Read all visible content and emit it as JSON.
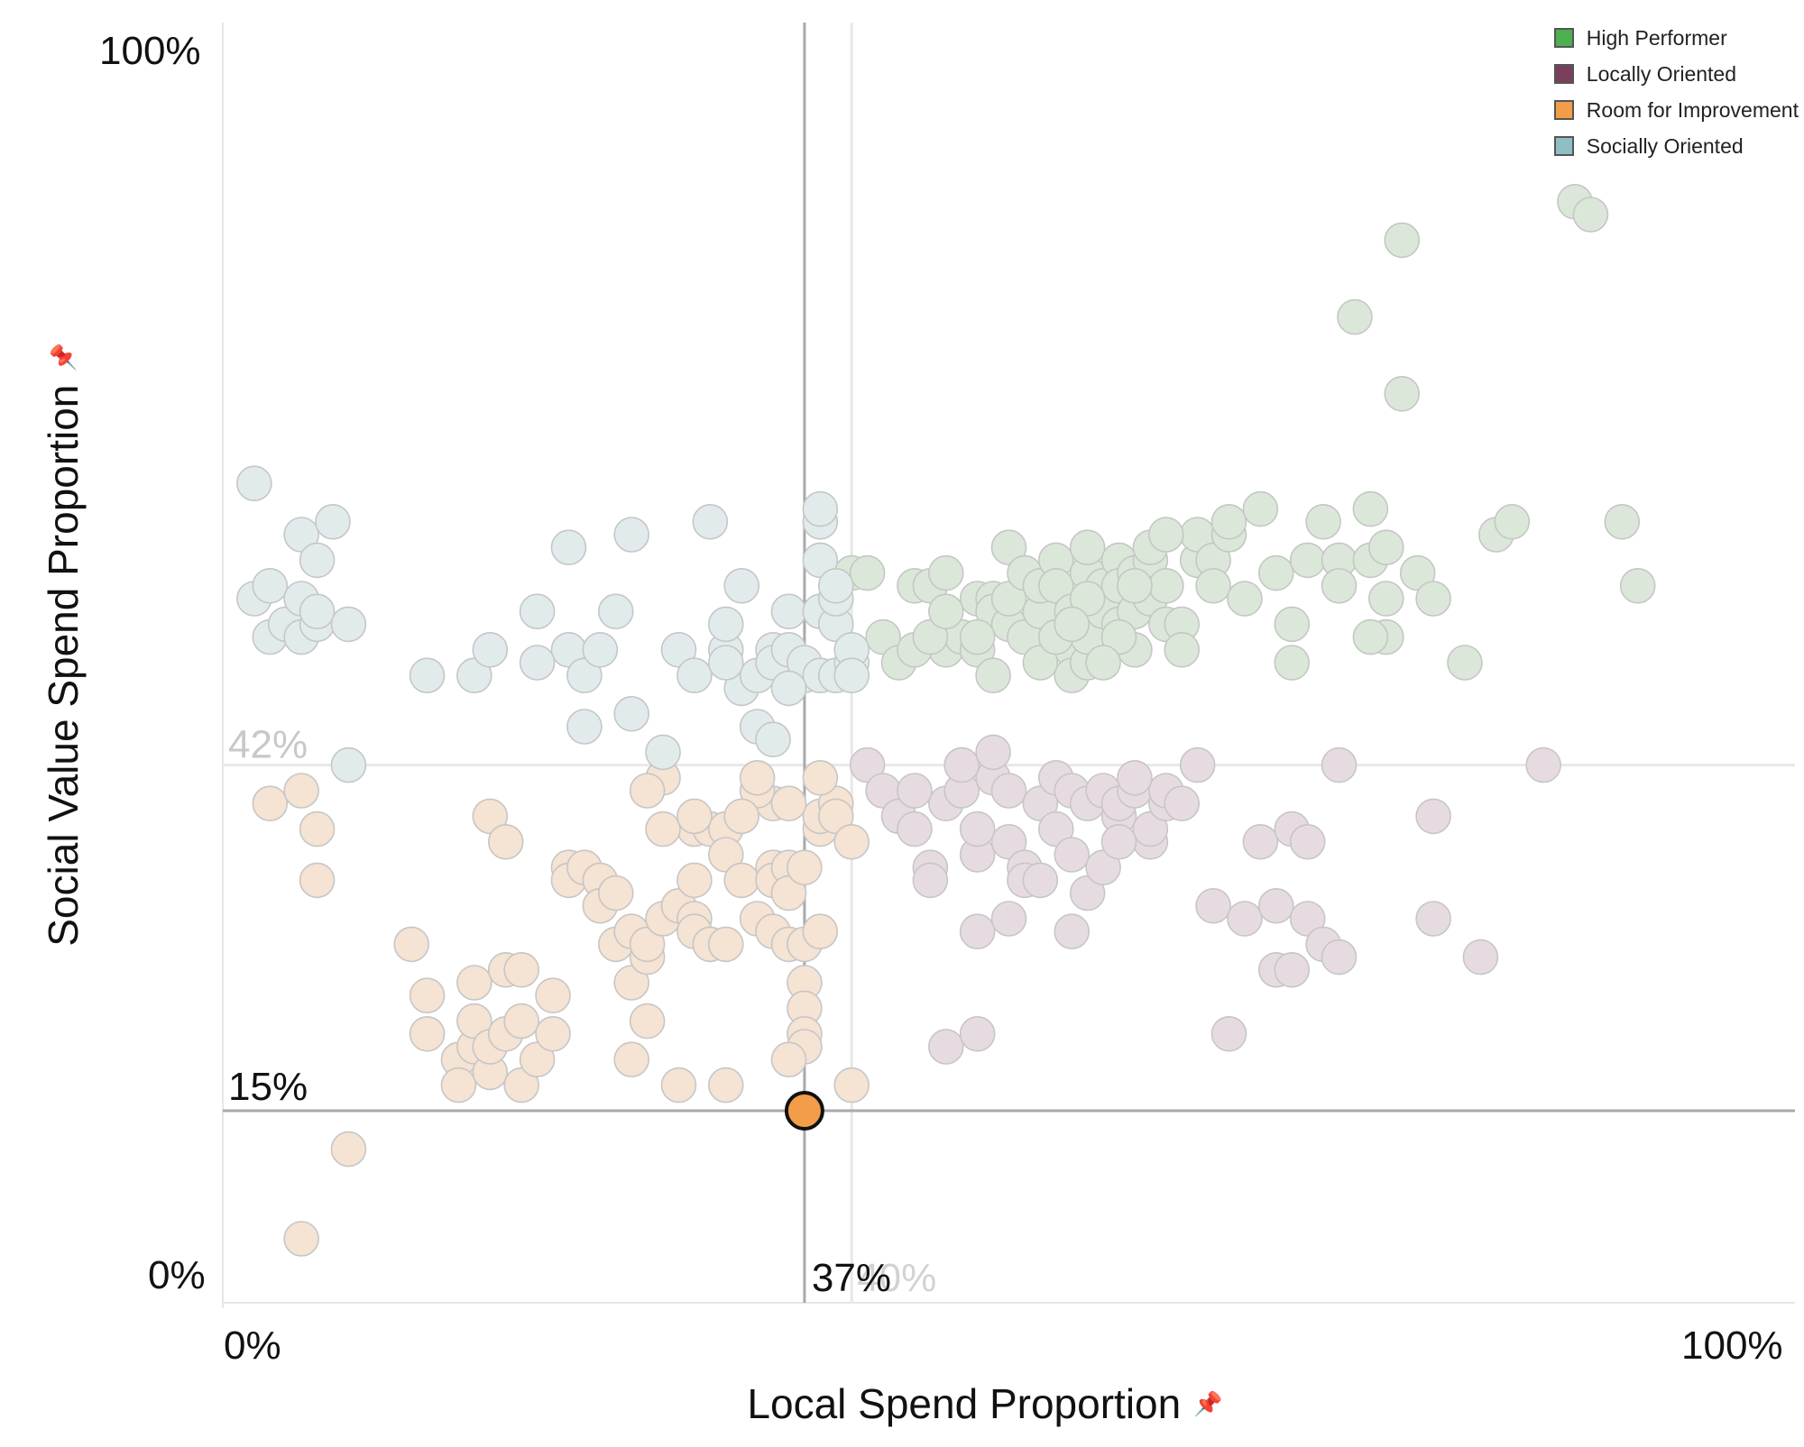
{
  "chart_data": {
    "type": "scatter",
    "xlabel": "Local Spend Proportion",
    "ylabel": "Social Value Spend Proportion",
    "xlim": [
      0,
      100
    ],
    "ylim": [
      0,
      100
    ],
    "x_ticks": [
      "0%",
      "100%"
    ],
    "y_ticks": [
      "0%",
      "100%"
    ],
    "grid": false,
    "legend_position": "top-right",
    "axis_title_icon": "pin-icon",
    "series": [
      {
        "name": "High Performer",
        "color": "#4caf50",
        "muted_color": "#dbe8d9"
      },
      {
        "name": "Locally Oriented",
        "color": "#7b3f5e",
        "muted_color": "#e7dbe2"
      },
      {
        "name": "Room for Improvement",
        "color": "#f39c4a",
        "muted_color": "#f5e3d3"
      },
      {
        "name": "Socially Oriented",
        "color": "#8fbfc4",
        "muted_color": "#e2ebec"
      }
    ],
    "reference_lines": {
      "selected": {
        "x": 37,
        "y": 15,
        "x_label": "37%",
        "y_label": "15%"
      },
      "average": {
        "x": 40,
        "y": 42,
        "x_label": "40%",
        "y_label": "42%"
      }
    },
    "highlighted_point": {
      "x": 37,
      "y": 15,
      "series": "Room for Improvement"
    },
    "points": {
      "High Performer": [
        [
          40,
          57
        ],
        [
          41,
          57
        ],
        [
          42,
          52
        ],
        [
          43,
          50
        ],
        [
          44,
          56
        ],
        [
          45,
          56
        ],
        [
          46,
          57
        ],
        [
          46,
          51
        ],
        [
          47,
          52
        ],
        [
          48,
          55
        ],
        [
          48,
          51
        ],
        [
          49,
          55
        ],
        [
          49,
          54
        ],
        [
          49,
          49
        ],
        [
          50,
          53
        ],
        [
          50,
          55
        ],
        [
          50,
          59
        ],
        [
          51,
          52
        ],
        [
          51,
          57
        ],
        [
          52,
          54
        ],
        [
          52,
          56
        ],
        [
          53,
          58
        ],
        [
          53,
          56
        ],
        [
          54,
          54
        ],
        [
          54,
          51
        ],
        [
          54,
          49
        ],
        [
          55,
          57
        ],
        [
          55,
          59
        ],
        [
          55,
          50
        ],
        [
          55,
          52
        ],
        [
          56,
          56
        ],
        [
          56,
          54
        ],
        [
          57,
          58
        ],
        [
          57,
          56
        ],
        [
          57,
          53
        ],
        [
          58,
          51
        ],
        [
          58,
          54
        ],
        [
          58,
          57
        ],
        [
          59,
          58
        ],
        [
          59,
          59
        ],
        [
          59,
          55
        ],
        [
          60,
          53
        ],
        [
          60,
          56
        ],
        [
          61,
          53
        ],
        [
          62,
          58
        ],
        [
          62,
          60
        ],
        [
          63,
          58
        ],
        [
          63,
          56
        ],
        [
          64,
          60
        ],
        [
          64,
          61
        ],
        [
          65,
          55
        ],
        [
          66,
          62
        ],
        [
          67,
          57
        ],
        [
          68,
          53
        ],
        [
          68,
          50
        ],
        [
          69,
          58
        ],
        [
          70,
          61
        ],
        [
          71,
          58
        ],
        [
          71,
          56
        ],
        [
          72,
          77
        ],
        [
          73,
          58
        ],
        [
          73,
          62
        ],
        [
          74,
          59
        ],
        [
          74,
          52
        ],
        [
          74,
          55
        ],
        [
          75,
          71
        ],
        [
          75,
          83
        ],
        [
          76,
          57
        ],
        [
          77,
          55
        ],
        [
          79,
          50
        ],
        [
          81,
          60
        ],
        [
          82,
          61
        ],
        [
          86,
          86
        ],
        [
          87,
          85
        ],
        [
          89,
          61
        ],
        [
          90,
          56
        ],
        [
          73,
          52
        ],
        [
          61,
          51
        ],
        [
          48,
          52
        ],
        [
          52,
          50
        ],
        [
          53,
          52
        ],
        [
          44,
          51
        ],
        [
          45,
          52
        ],
        [
          46,
          54
        ],
        [
          60,
          60
        ],
        [
          58,
          56
        ],
        [
          57,
          52
        ],
        [
          56,
          50
        ],
        [
          55,
          55
        ],
        [
          54,
          53
        ]
      ],
      "Locally Oriented": [
        [
          41,
          42
        ],
        [
          42,
          40
        ],
        [
          43,
          38
        ],
        [
          44,
          37
        ],
        [
          45,
          34
        ],
        [
          45,
          33
        ],
        [
          46,
          39
        ],
        [
          47,
          42
        ],
        [
          47,
          40
        ],
        [
          48,
          35
        ],
        [
          48,
          37
        ],
        [
          49,
          41
        ],
        [
          50,
          40
        ],
        [
          50,
          36
        ],
        [
          51,
          34
        ],
        [
          51,
          33
        ],
        [
          52,
          39
        ],
        [
          52,
          33
        ],
        [
          53,
          41
        ],
        [
          53,
          37
        ],
        [
          54,
          40
        ],
        [
          54,
          35
        ],
        [
          55,
          39
        ],
        [
          55,
          32
        ],
        [
          56,
          40
        ],
        [
          56,
          34
        ],
        [
          57,
          38
        ],
        [
          57,
          39
        ],
        [
          58,
          40
        ],
        [
          59,
          36
        ],
        [
          59,
          37
        ],
        [
          60,
          39
        ],
        [
          60,
          40
        ],
        [
          61,
          39
        ],
        [
          62,
          42
        ],
        [
          63,
          31
        ],
        [
          64,
          21
        ],
        [
          65,
          30
        ],
        [
          66,
          36
        ],
        [
          67,
          31
        ],
        [
          67,
          26
        ],
        [
          68,
          37
        ],
        [
          68,
          26
        ],
        [
          69,
          30
        ],
        [
          70,
          28
        ],
        [
          71,
          27
        ],
        [
          71,
          42
        ],
        [
          77,
          30
        ],
        [
          77,
          38
        ],
        [
          80,
          27
        ],
        [
          84,
          42
        ],
        [
          48,
          29
        ],
        [
          50,
          30
        ],
        [
          46,
          20
        ],
        [
          48,
          21
        ],
        [
          54,
          29
        ],
        [
          57,
          36
        ],
        [
          58,
          41
        ],
        [
          69,
          36
        ],
        [
          47,
          42
        ],
        [
          44,
          40
        ],
        [
          49,
          43
        ]
      ],
      "Room for Improvement": [
        [
          3,
          39
        ],
        [
          5,
          40
        ],
        [
          6,
          37
        ],
        [
          6,
          33
        ],
        [
          12,
          28
        ],
        [
          13,
          24
        ],
        [
          13,
          21
        ],
        [
          15,
          19
        ],
        [
          15,
          17
        ],
        [
          16,
          20
        ],
        [
          16,
          25
        ],
        [
          16,
          22
        ],
        [
          17,
          18
        ],
        [
          17,
          20
        ],
        [
          17,
          38
        ],
        [
          18,
          36
        ],
        [
          18,
          21
        ],
        [
          18,
          26
        ],
        [
          19,
          26
        ],
        [
          19,
          22
        ],
        [
          19,
          17
        ],
        [
          20,
          19
        ],
        [
          21,
          21
        ],
        [
          21,
          24
        ],
        [
          22,
          34
        ],
        [
          22,
          33
        ],
        [
          23,
          34
        ],
        [
          24,
          33
        ],
        [
          24,
          31
        ],
        [
          25,
          28
        ],
        [
          25,
          32
        ],
        [
          26,
          29
        ],
        [
          26,
          25
        ],
        [
          27,
          27
        ],
        [
          27,
          28
        ],
        [
          28,
          41
        ],
        [
          28,
          30
        ],
        [
          29,
          31
        ],
        [
          30,
          37
        ],
        [
          30,
          33
        ],
        [
          27,
          40
        ],
        [
          28,
          37
        ],
        [
          35,
          39
        ],
        [
          31,
          37
        ],
        [
          32,
          37
        ],
        [
          32,
          35
        ],
        [
          30,
          30
        ],
        [
          30,
          29
        ],
        [
          31,
          28
        ],
        [
          32,
          28
        ],
        [
          33,
          33
        ],
        [
          34,
          40
        ],
        [
          34,
          30
        ],
        [
          35,
          34
        ],
        [
          35,
          33
        ],
        [
          35,
          29
        ],
        [
          36,
          34
        ],
        [
          36,
          32
        ],
        [
          36,
          28
        ],
        [
          37,
          34
        ],
        [
          37,
          28
        ],
        [
          37,
          25
        ],
        [
          37,
          23
        ],
        [
          37,
          21
        ],
        [
          37,
          20
        ],
        [
          36,
          19
        ],
        [
          38,
          37
        ],
        [
          38,
          38
        ],
        [
          38,
          29
        ],
        [
          39,
          39
        ],
        [
          39,
          38
        ],
        [
          40,
          36
        ],
        [
          40,
          17
        ],
        [
          5,
          5
        ],
        [
          8,
          12
        ],
        [
          30,
          38
        ],
        [
          33,
          38
        ],
        [
          34,
          41
        ],
        [
          36,
          39
        ],
        [
          38,
          41
        ],
        [
          32,
          17
        ],
        [
          27,
          22
        ],
        [
          26,
          19
        ],
        [
          29,
          17
        ]
      ],
      "Socially Oriented": [
        [
          2,
          64
        ],
        [
          2,
          55
        ],
        [
          3,
          52
        ],
        [
          3,
          56
        ],
        [
          4,
          53
        ],
        [
          5,
          55
        ],
        [
          5,
          60
        ],
        [
          5,
          52
        ],
        [
          6,
          53
        ],
        [
          6,
          58
        ],
        [
          6,
          54
        ],
        [
          7,
          61
        ],
        [
          8,
          53
        ],
        [
          8,
          42
        ],
        [
          13,
          49
        ],
        [
          16,
          49
        ],
        [
          20,
          54
        ],
        [
          22,
          51
        ],
        [
          22,
          59
        ],
        [
          23,
          49
        ],
        [
          23,
          45
        ],
        [
          24,
          51
        ],
        [
          25,
          54
        ],
        [
          26,
          60
        ],
        [
          26,
          46
        ],
        [
          28,
          43
        ],
        [
          29,
          51
        ],
        [
          30,
          49
        ],
        [
          31,
          61
        ],
        [
          32,
          51
        ],
        [
          32,
          53
        ],
        [
          33,
          48
        ],
        [
          33,
          56
        ],
        [
          34,
          49
        ],
        [
          35,
          51
        ],
        [
          35,
          50
        ],
        [
          36,
          51
        ],
        [
          36,
          54
        ],
        [
          37,
          49
        ],
        [
          37,
          50
        ],
        [
          38,
          54
        ],
        [
          38,
          58
        ],
        [
          38,
          49
        ],
        [
          39,
          53
        ],
        [
          39,
          55
        ],
        [
          39,
          49
        ],
        [
          40,
          50
        ],
        [
          40,
          51
        ],
        [
          40,
          49
        ],
        [
          34,
          45
        ],
        [
          35,
          44
        ],
        [
          36,
          48
        ],
        [
          38,
          61
        ],
        [
          38,
          62
        ],
        [
          20,
          50
        ],
        [
          17,
          51
        ],
        [
          32,
          50
        ],
        [
          39,
          56
        ]
      ]
    }
  }
}
